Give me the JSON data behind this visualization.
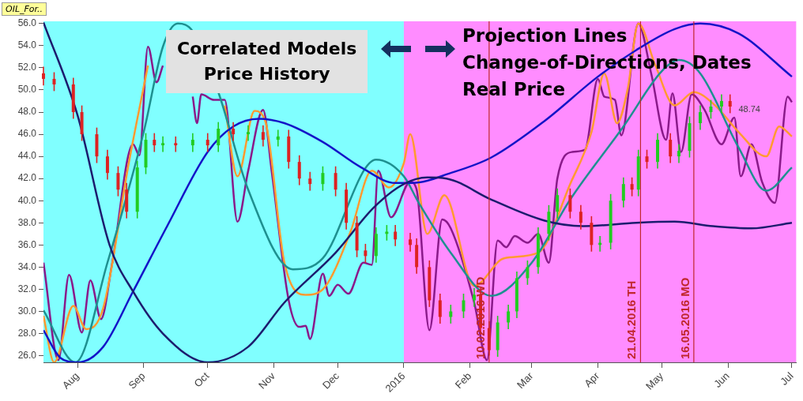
{
  "chart_data": {
    "type": "line",
    "marker": "none",
    "grid": false,
    "legend": false,
    "xlim": [
      "2015-07-16",
      "2016-07-03"
    ],
    "ylim": [
      25.4,
      56.2
    ],
    "xticks": [
      {
        "value": "2015-08-01",
        "label": "Aug"
      },
      {
        "value": "2015-09-01",
        "label": "Sep"
      },
      {
        "value": "2015-10-01",
        "label": "Oct"
      },
      {
        "value": "2015-11-01",
        "label": "Nov"
      },
      {
        "value": "2015-12-01",
        "label": "Dec"
      },
      {
        "value": "2016-01-01",
        "label": "2016"
      },
      {
        "value": "2016-02-01",
        "label": "Feb"
      },
      {
        "value": "2016-03-01",
        "label": "Mar"
      },
      {
        "value": "2016-04-01",
        "label": "Apr"
      },
      {
        "value": "2016-05-01",
        "label": "May"
      },
      {
        "value": "2016-06-01",
        "label": "Jun"
      },
      {
        "value": "2016-07-01",
        "label": "Jul"
      }
    ],
    "yticks": [
      {
        "value": 26,
        "label": "26.0"
      },
      {
        "value": 28,
        "label": "28.0"
      },
      {
        "value": 30,
        "label": "30.0"
      },
      {
        "value": 32,
        "label": "32.0"
      },
      {
        "value": 34,
        "label": "34.0"
      },
      {
        "value": 36,
        "label": "36.0"
      },
      {
        "value": 38,
        "label": "38.0"
      },
      {
        "value": 40,
        "label": "40.0"
      },
      {
        "value": 42,
        "label": "42.0"
      },
      {
        "value": 44,
        "label": "44.0"
      },
      {
        "value": 46,
        "label": "46.0"
      },
      {
        "value": 48,
        "label": "48.0"
      },
      {
        "value": 50,
        "label": "50.0"
      },
      {
        "value": 52,
        "label": "52.0"
      },
      {
        "value": 54,
        "label": "54.0"
      },
      {
        "value": 56,
        "label": "56.0"
      }
    ],
    "bands": [
      {
        "axis": "x",
        "from": "2015-07-16",
        "to": "2016-01-01",
        "color": "#80ffff"
      },
      {
        "axis": "x",
        "from": "2016-01-01",
        "to": "2016-07-03",
        "color": "#ff8cff"
      }
    ],
    "ref_lines": [
      {
        "axis": "x",
        "value": "2016-02-10",
        "label": "10.02.2016 WD",
        "color": "#c0282d"
      },
      {
        "axis": "x",
        "value": "2016-04-21",
        "label": "21.04.2016 TH",
        "color": "#c0282d"
      },
      {
        "axis": "x",
        "value": "2016-05-16",
        "label": "16.05.2016 MO",
        "color": "#c0282d"
      }
    ],
    "annotations": [
      "OIL_For..",
      "Correlated Models\nPrice History",
      "Projection Lines\nChange-of-Directions, Dates\nReal Price",
      {
        "text": "48.74",
        "x": "2016-06-03",
        "y": 48.74
      }
    ],
    "series": [
      {
        "type": "candlestick",
        "x": [
          "2015-07-16",
          "2015-07-21",
          "2015-07-30",
          "2015-08-03",
          "2015-08-10",
          "2015-08-15",
          "2015-08-20",
          "2015-08-24",
          "2015-08-29",
          "2015-09-02",
          "2015-09-06",
          "2015-09-10",
          "2015-09-16",
          "2015-09-24",
          "2015-10-01",
          "2015-10-06",
          "2015-10-13",
          "2015-10-20",
          "2015-10-27",
          "2015-11-03",
          "2015-11-08",
          "2015-11-13",
          "2015-11-18",
          "2015-11-24",
          "2015-11-30",
          "2015-12-05",
          "2015-12-10",
          "2015-12-14",
          "2015-12-19",
          "2015-12-24",
          "2015-12-28",
          "2016-01-04",
          "2016-01-07",
          "2016-01-13",
          "2016-01-18",
          "2016-01-23",
          "2016-01-29",
          "2016-02-03",
          "2016-02-06",
          "2016-02-10",
          "2016-02-14",
          "2016-02-19",
          "2016-02-23",
          "2016-02-28",
          "2016-03-04",
          "2016-03-09",
          "2016-03-13",
          "2016-03-19",
          "2016-03-24",
          "2016-03-29",
          "2016-04-02",
          "2016-04-07",
          "2016-04-13",
          "2016-04-17",
          "2016-04-20",
          "2016-04-24",
          "2016-04-29",
          "2016-05-05",
          "2016-05-09",
          "2016-05-14",
          "2016-05-19",
          "2016-05-24",
          "2016-05-29",
          "2016-06-02"
        ],
        "ohlc": [
          [
            51.5,
            52.1,
            50.4,
            51
          ],
          [
            51,
            51.6,
            49.9,
            50.5
          ],
          [
            50.5,
            51.1,
            47.4,
            48
          ],
          [
            48,
            48.6,
            45.4,
            46
          ],
          [
            46,
            46.6,
            43.4,
            44
          ],
          [
            44,
            44.6,
            41.9,
            42.5
          ],
          [
            42.5,
            43.1,
            40.4,
            41
          ],
          [
            41,
            41.6,
            38.4,
            39
          ],
          [
            39,
            43.6,
            38.4,
            43
          ],
          [
            43,
            46.1,
            42.4,
            45.5
          ],
          [
            45.5,
            46.1,
            44.4,
            45
          ],
          [
            45,
            45.8,
            44.4,
            45.2
          ],
          [
            45.2,
            45.8,
            44.4,
            45
          ],
          [
            45,
            46.1,
            44.4,
            45.5
          ],
          [
            45.5,
            46.1,
            44.4,
            45
          ],
          [
            45,
            47.1,
            44.4,
            46.5
          ],
          [
            46.5,
            47.1,
            45.4,
            46
          ],
          [
            46,
            46.8,
            45.4,
            46.2
          ],
          [
            46.2,
            46.8,
            44.9,
            45.5
          ],
          [
            45.5,
            46.4,
            44.9,
            45.8
          ],
          [
            45.8,
            46.4,
            42.9,
            43.5
          ],
          [
            43.5,
            44.1,
            41.4,
            42
          ],
          [
            42,
            42.6,
            40.9,
            41.5
          ],
          [
            41.5,
            43.1,
            40.9,
            42.5
          ],
          [
            42.5,
            43.1,
            40.4,
            41
          ],
          [
            41,
            41.6,
            37.4,
            38
          ],
          [
            38,
            38.6,
            34.9,
            35.5
          ],
          [
            35.5,
            36.1,
            34.4,
            35
          ],
          [
            35,
            37.6,
            34.4,
            37
          ],
          [
            37,
            37.8,
            36.4,
            37.2
          ],
          [
            37.2,
            37.8,
            35.9,
            36.5
          ],
          [
            36.5,
            37.1,
            35.4,
            36
          ],
          [
            36,
            36.6,
            33.4,
            34
          ],
          [
            34,
            34.6,
            30.4,
            31
          ],
          [
            31,
            31.6,
            28.9,
            29.5
          ],
          [
            29.5,
            30.6,
            28.9,
            30
          ],
          [
            30,
            31.6,
            29.4,
            31
          ],
          [
            31,
            32.1,
            30.4,
            31.5
          ],
          [
            31.5,
            32.1,
            27.9,
            28.5
          ],
          [
            28.5,
            29.1,
            26,
            26.5
          ],
          [
            26.5,
            29.6,
            25.9,
            29
          ],
          [
            29,
            30.6,
            28.4,
            30
          ],
          [
            30,
            33.6,
            29.4,
            33
          ],
          [
            33,
            34.6,
            32.4,
            34
          ],
          [
            34,
            37.6,
            33.4,
            37
          ],
          [
            37,
            39.6,
            36.4,
            39
          ],
          [
            39,
            41.1,
            38.4,
            40.5
          ],
          [
            40.5,
            41.1,
            38.4,
            39
          ],
          [
            39,
            39.6,
            37.4,
            38
          ],
          [
            38,
            38.6,
            35.4,
            36
          ],
          [
            36,
            36.8,
            35.4,
            36.2
          ],
          [
            36.2,
            40.6,
            35.6,
            40
          ],
          [
            40,
            42.1,
            39.4,
            41.5
          ],
          [
            41.5,
            42.1,
            40.4,
            41
          ],
          [
            41,
            44.6,
            40.4,
            44
          ],
          [
            44,
            44.6,
            42.9,
            43.5
          ],
          [
            43.5,
            46.1,
            42.9,
            45.5
          ],
          [
            45.5,
            46.1,
            43.4,
            44
          ],
          [
            44,
            45.1,
            43.4,
            44.5
          ],
          [
            44.5,
            47.6,
            43.9,
            47
          ],
          [
            47,
            48.6,
            46.4,
            48
          ],
          [
            48,
            49.1,
            47.4,
            48.5
          ],
          [
            48.5,
            49.6,
            47.9,
            49
          ],
          [
            49,
            49.6,
            47.9,
            48.5
          ]
        ]
      },
      {
        "color": "#1c1c6e",
        "x": [
          "2015-07-16",
          "2015-08-01",
          "2015-08-16",
          "2015-08-27",
          "2015-09-10",
          "2015-10-01",
          "2015-10-20",
          "2015-11-06",
          "2015-11-30",
          "2015-12-18",
          "2016-01-01",
          "2016-01-12",
          "2016-01-21",
          "2016-02-11",
          "2016-03-07",
          "2016-03-25",
          "2016-04-19",
          "2016-05-07",
          "2016-05-25",
          "2016-06-12",
          "2016-07-01"
        ],
        "values": [
          56.1,
          47.7,
          36,
          31.8,
          28,
          25.4,
          26.8,
          30.8,
          35.3,
          39.4,
          41.5,
          42.1,
          42,
          40.1,
          38.2,
          37.7,
          38,
          38.1,
          37.7,
          37.5,
          38
        ]
      },
      {
        "color": "#1414c8",
        "x": [
          "2015-07-16",
          "2015-07-24",
          "2015-08-01",
          "2015-08-13",
          "2015-08-27",
          "2015-09-12",
          "2015-10-01",
          "2015-10-13",
          "2015-10-25",
          "2015-11-06",
          "2015-11-24",
          "2015-12-12",
          "2015-12-28",
          "2016-01-05",
          "2016-01-23",
          "2016-02-11",
          "2016-03-07",
          "2016-04-01",
          "2016-04-19",
          "2016-05-07",
          "2016-05-19",
          "2016-06-06",
          "2016-07-01"
        ],
        "values": [
          28.3,
          25.8,
          25.4,
          26.8,
          31.8,
          37.7,
          44.4,
          46.7,
          47.4,
          47,
          45.3,
          43,
          41.6,
          41.6,
          42.5,
          43.9,
          47.2,
          51.2,
          53.6,
          55.5,
          56,
          55.1,
          51.2
        ]
      },
      {
        "color": "#1e9090",
        "x": [
          "2015-07-16",
          "2015-07-31",
          "2015-08-15",
          "2015-09-01",
          "2015-09-10",
          "2015-09-17",
          "2015-09-24",
          "2015-10-06",
          "2015-10-20",
          "2015-11-10",
          "2015-11-24",
          "2015-12-19",
          "2016-01-01",
          "2016-01-08",
          "2016-01-23",
          "2016-02-11",
          "2016-03-01",
          "2016-03-19",
          "2016-04-13",
          "2016-05-01",
          "2016-05-09",
          "2016-05-19",
          "2016-06-06",
          "2016-06-19",
          "2016-07-01"
        ],
        "values": [
          30.1,
          25.4,
          34.4,
          46.2,
          53.9,
          56,
          55.3,
          49.8,
          41,
          33.8,
          34.8,
          43.7,
          42.2,
          39.8,
          35.3,
          31.4,
          34.4,
          40.1,
          46.7,
          51.7,
          52.7,
          51.5,
          44.8,
          40.9,
          43
        ]
      },
      {
        "color": "#ff9a30",
        "x": [
          "2015-07-16",
          "2015-07-21",
          "2015-07-30",
          "2015-08-05",
          "2015-08-13",
          "2015-08-25",
          "2015-09-03",
          "2015-09-20",
          "2015-10-09",
          "2015-10-15",
          "2015-10-23",
          "2015-10-28",
          "2015-11-06",
          "2015-11-16",
          "2015-11-25",
          "2015-12-07",
          "2015-12-17",
          "2015-12-25",
          "2016-01-01",
          "2016-01-04",
          "2016-01-12",
          "2016-01-20",
          "2016-02-03",
          "2016-02-17",
          "2016-03-04",
          "2016-03-19",
          "2016-03-29",
          "2016-04-04",
          "2016-04-10",
          "2016-04-15",
          "2016-04-20",
          "2016-04-28",
          "2016-05-07",
          "2016-05-16",
          "2016-05-26",
          "2016-06-06",
          "2016-06-19",
          "2016-06-25",
          "2016-07-01"
        ],
        "values": [
          29.6,
          25.4,
          30.5,
          28.4,
          30.3,
          43.4,
          52.2,
          null,
          48.6,
          42.2,
          48.1,
          47.2,
          34.4,
          31.5,
          32.2,
          37.2,
          42.7,
          41.2,
          43.4,
          46,
          37,
          40.5,
          32.3,
          34.8,
          35.3,
          41.5,
          46.2,
          51.5,
          47,
          50.1,
          56,
          52.2,
          48.6,
          49.8,
          48.6,
          46.2,
          44,
          46.7,
          45.8
        ]
      },
      {
        "color": "#8a1a8a",
        "x": [
          "2015-07-16",
          "2015-07-23",
          "2015-07-28",
          "2015-08-03",
          "2015-08-07",
          "2015-08-12",
          "2015-08-17",
          "2015-08-27",
          "2015-08-30",
          "2015-09-03",
          "2015-09-07",
          "2015-09-10",
          "2015-09-14",
          "2015-09-24",
          "2015-09-26",
          "2015-09-28",
          "2015-10-04",
          "2015-10-09",
          "2015-10-15",
          "2015-10-20",
          "2015-10-27",
          "2015-10-31",
          "2015-11-08",
          "2015-11-13",
          "2015-11-16",
          "2015-11-18",
          "2015-11-24",
          "2015-11-27",
          "2015-12-01",
          "2015-12-06",
          "2015-12-13",
          "2015-12-17",
          "2015-12-20",
          "2015-12-26",
          "2016-01-04",
          "2016-01-07",
          "2016-01-13",
          "2016-01-19",
          "2016-01-23",
          "2016-02-03",
          "2016-02-09",
          "2016-02-14",
          "2016-02-18",
          "2016-02-22",
          "2016-02-28",
          "2016-03-04",
          "2016-03-09",
          "2016-03-13",
          "2016-03-20",
          "2016-03-26",
          "2016-04-01",
          "2016-04-04",
          "2016-04-09",
          "2016-04-12",
          "2016-04-20",
          "2016-04-26",
          "2016-05-03",
          "2016-05-06",
          "2016-05-10",
          "2016-05-15",
          "2016-05-21",
          "2016-05-29",
          "2016-06-04",
          "2016-06-07",
          "2016-06-12",
          "2016-06-17",
          "2016-06-23",
          "2016-06-29",
          "2016-07-01"
        ],
        "values": [
          34.4,
          25.6,
          33.3,
          28.1,
          32.8,
          29.3,
          34.1,
          45.1,
          44.1,
          53.9,
          50.7,
          52.2,
          null,
          49.4,
          47,
          49.6,
          49.1,
          49.1,
          38.1,
          42.7,
          48.2,
          42.7,
          31,
          28.6,
          28.7,
          27.5,
          33.4,
          31.4,
          32.4,
          31.6,
          34.4,
          34.2,
          42.7,
          38.5,
          41.7,
          41,
          28.3,
          38.3,
          37.5,
          30.8,
          25.6,
          36.4,
          35.8,
          36.8,
          36.2,
          37,
          34.4,
          42,
          44.4,
          44.6,
          51,
          49.4,
          49.1,
          45.9,
          56,
          51.5,
          45.5,
          49.7,
          44.4,
          49.6,
          48.2,
          45.1,
          47.5,
          42.2,
          45.1,
          41.7,
          39.8,
          49.4,
          48.9
        ]
      }
    ]
  }
}
